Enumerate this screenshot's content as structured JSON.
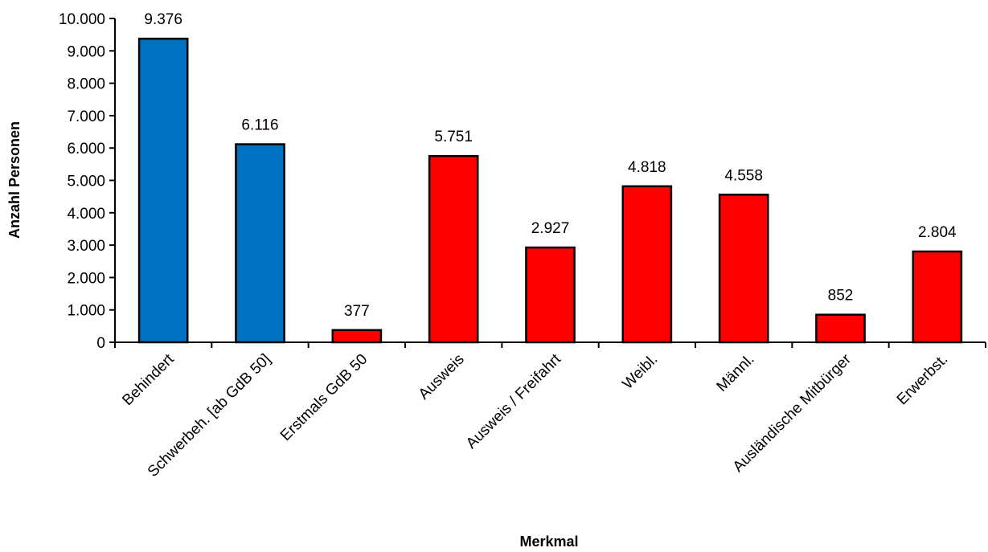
{
  "chart_data": {
    "type": "bar",
    "title": "",
    "xlabel": "Merkmal",
    "ylabel": "Anzahl Personen",
    "categories": [
      "Behindert",
      "Schwerbeh. [ab GdB 50]",
      "Erstmals GdB 50",
      "Ausweis",
      "Ausweis / Freifahrt",
      "Weibl.",
      "Männl.",
      "Ausländische Mitbürger",
      "Erwerbst."
    ],
    "values": [
      9376,
      6116,
      377,
      5751,
      2927,
      4818,
      4558,
      852,
      2804
    ],
    "value_labels": [
      "9.376",
      "6.116",
      "377",
      "5.751",
      "2.927",
      "4.818",
      "4.558",
      "852",
      "2.804"
    ],
    "bar_colors": [
      "#0070C0",
      "#0070C0",
      "#FF0000",
      "#FF0000",
      "#FF0000",
      "#FF0000",
      "#FF0000",
      "#FF0000",
      "#FF0000"
    ],
    "ylim": [
      0,
      10000
    ],
    "yticks": [
      0,
      1000,
      2000,
      3000,
      4000,
      5000,
      6000,
      7000,
      8000,
      9000,
      10000
    ],
    "ytick_labels": [
      "0",
      "1.000",
      "2.000",
      "3.000",
      "4.000",
      "5.000",
      "6.000",
      "7.000",
      "8.000",
      "9.000",
      "10.000"
    ],
    "grid": false,
    "legend": "none"
  }
}
